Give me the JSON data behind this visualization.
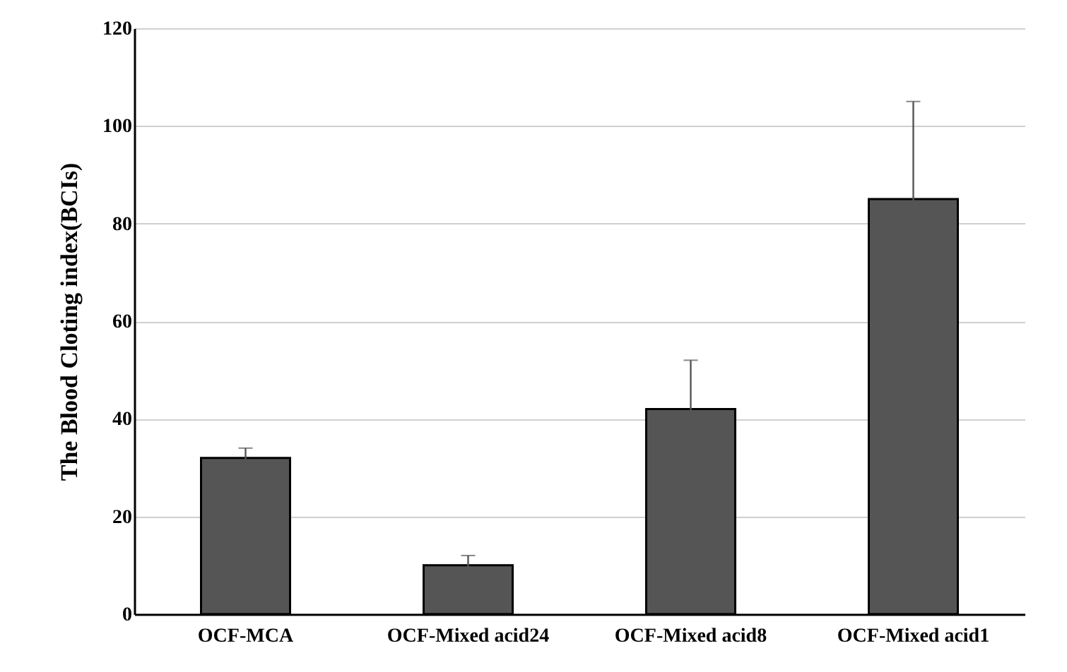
{
  "chart_data": {
    "type": "bar",
    "ylabel": "The Blood Cloting index(BCIs)",
    "categories": [
      "OCF-MCA",
      "OCF-Mixed acid24",
      "OCF-Mixed acid8",
      "OCF-Mixed acid1"
    ],
    "values": [
      32,
      10,
      42,
      85
    ],
    "errors": [
      2,
      2,
      10,
      20
    ],
    "color": "#555555",
    "ylim": [
      0,
      120
    ],
    "yticks": [
      0,
      20,
      40,
      60,
      80,
      100,
      120
    ],
    "grid": "y"
  }
}
